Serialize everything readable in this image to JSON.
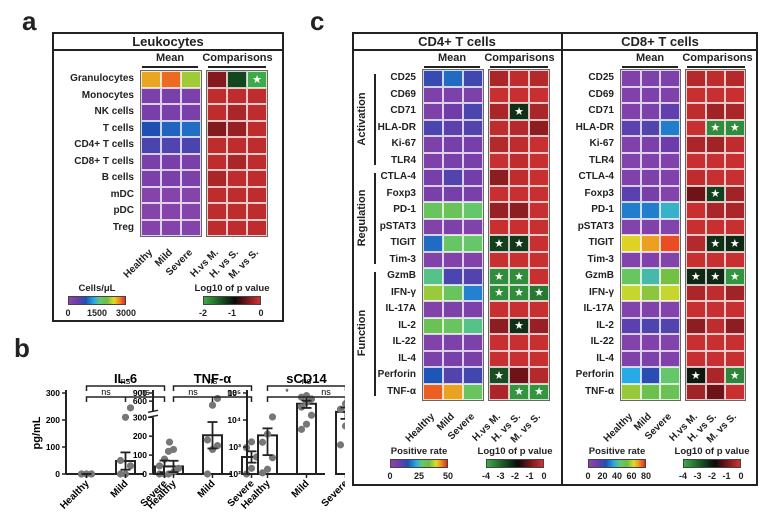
{
  "panels": {
    "a_label": "a",
    "b_label": "b",
    "c_label": "c"
  },
  "chart_data": [
    {
      "id": "panel-a",
      "type": "heatmap",
      "title": "Leukocytes",
      "mean_header": "Mean",
      "comparisons_header": "Comparisons",
      "rows": [
        "Granulocytes",
        "Monocytes",
        "NK cells",
        "T cells",
        "CD4+ T cells",
        "CD8+ T cells",
        "B cells",
        "mDC",
        "pDC",
        "Treg"
      ],
      "mean_columns": [
        "Healthy",
        "Mild",
        "Severe"
      ],
      "comparison_columns": [
        "H.vs M.",
        "H. vs S.",
        "M. vs S."
      ],
      "mean_values_cells_per_uL": [
        [
          2600,
          2800,
          2200
        ],
        [
          250,
          280,
          260
        ],
        [
          300,
          280,
          290
        ],
        [
          900,
          1000,
          1050
        ],
        [
          650,
          620,
          640
        ],
        [
          280,
          300,
          290
        ],
        [
          250,
          270,
          260
        ],
        [
          100,
          110,
          110
        ],
        [
          110,
          110,
          110
        ],
        [
          120,
          115,
          120
        ]
      ],
      "comparison_log10_p": [
        [
          -0.4,
          -1.3,
          -2.0
        ],
        [
          -0.1,
          -0.1,
          -0.1
        ],
        [
          -0.1,
          -0.2,
          -0.1
        ],
        [
          -0.4,
          -0.3,
          -0.1
        ],
        [
          -0.1,
          -0.1,
          -0.1
        ],
        [
          -0.1,
          -0.2,
          -0.1
        ],
        [
          -0.2,
          -0.1,
          -0.1
        ],
        [
          -0.1,
          -0.1,
          -0.1
        ],
        [
          -0.1,
          -0.1,
          -0.1
        ],
        [
          -0.1,
          -0.1,
          -0.1
        ]
      ],
      "significant": [
        [
          false,
          false,
          true
        ],
        [
          false,
          false,
          false
        ],
        [
          false,
          false,
          false
        ],
        [
          false,
          false,
          false
        ],
        [
          false,
          false,
          false
        ],
        [
          false,
          false,
          false
        ],
        [
          false,
          false,
          false
        ],
        [
          false,
          false,
          false
        ],
        [
          false,
          false,
          false
        ],
        [
          false,
          false,
          false
        ]
      ],
      "mean_colorbar": {
        "title": "Cells/μL",
        "ticks": [
          "0",
          "1500",
          "3000"
        ],
        "range": [
          0,
          3000
        ]
      },
      "p_colorbar": {
        "title": "Log10 of p value",
        "ticks": [
          "-2",
          "-1",
          "0"
        ],
        "range": [
          -2,
          0
        ]
      }
    },
    {
      "id": "panel-b",
      "type": "bar",
      "ylabel": "pg/mL",
      "categories": [
        "Healthy",
        "Mild",
        "Severe"
      ],
      "subplots": [
        {
          "title": "IL-6",
          "scale": "linear",
          "yticks": [
            "0",
            "100",
            "200",
            "300"
          ],
          "ylim": [
            0,
            300
          ],
          "values": [
            0,
            48,
            28
          ],
          "errors": [
            0,
            32,
            22
          ],
          "points": [
            [
              0,
              0,
              0,
              0,
              0,
              0
            ],
            [
              0,
              0,
              30,
              50,
              210,
              245
            ],
            [
              0,
              0,
              10,
              30,
              55,
              118
            ]
          ],
          "sig": {
            "top": "ns",
            "left": "ns",
            "right": "ns"
          }
        },
        {
          "title": "TNF-α",
          "scale": "broken",
          "yticks": [
            "0",
            "100",
            "200",
            "300",
            "600",
            "900"
          ],
          "ylim": [
            0,
            900
          ],
          "values": [
            40,
            205,
            90
          ],
          "errors": [
            30,
            70,
            30
          ],
          "points": [
            [
              0,
              10,
              30,
              120,
              130
            ],
            [
              0,
              130,
              150,
              180,
              450,
              700
            ],
            [
              0,
              30,
              90,
              140,
              170
            ]
          ],
          "sig": {
            "top": "ns",
            "left": "ns",
            "right": "ns"
          }
        },
        {
          "title": "sCD14",
          "scale": "log",
          "yticks": [
            "10²",
            "10³",
            "10⁴",
            "10⁵"
          ],
          "ylim": [
            100,
            100000
          ],
          "values": [
            2700,
            40000,
            20000
          ],
          "errors": [
            2200,
            12000,
            9000
          ],
          "points": [
            [
              110,
              150,
              400,
              1500,
              3000,
              13000
            ],
            [
              4500,
              7000,
              15000,
              30000,
              45000,
              60000,
              70000,
              80000
            ],
            [
              1200,
              6000,
              15000,
              25000,
              40000,
              45000
            ]
          ],
          "sig": {
            "top": "ns",
            "left": "*",
            "right": "ns"
          }
        }
      ]
    },
    {
      "id": "panel-c-cd4",
      "type": "heatmap",
      "title": "CD4+ T cells",
      "mean_header": "Mean",
      "comparisons_header": "Comparisons",
      "groups": [
        {
          "label": "Activation",
          "rows": 6
        },
        {
          "label": "Regulation",
          "rows": 6
        },
        {
          "label": "Function",
          "rows": 8
        }
      ],
      "rows": [
        "CD25",
        "CD69",
        "CD71",
        "HLA-DR",
        "Ki-67",
        "TLR4",
        "CTLA-4",
        "Foxp3",
        "PD-1",
        "pSTAT3",
        "TIGIT",
        "Tim-3",
        "GzmB",
        "IFN-γ",
        "IL-17A",
        "IL-2",
        "IL-22",
        "IL-4",
        "Perforin",
        "TNF-α"
      ],
      "mean_columns": [
        "Healthy",
        "Mild",
        "Severe"
      ],
      "comparison_columns": [
        "H.vs M.",
        "H. vs S.",
        "M. vs S."
      ],
      "mean_values_positive_rate": [
        [
          14,
          19,
          13
        ],
        [
          4,
          4,
          4
        ],
        [
          4,
          8,
          12
        ],
        [
          12,
          10,
          11
        ],
        [
          4,
          6,
          6
        ],
        [
          4,
          5,
          5
        ],
        [
          6,
          11,
          7
        ],
        [
          5,
          6,
          5
        ],
        [
          33,
          34,
          31
        ],
        [
          3,
          4,
          3
        ],
        [
          19,
          32,
          31
        ],
        [
          3,
          3,
          3
        ],
        [
          29,
          12,
          11
        ],
        [
          40,
          33,
          21
        ],
        [
          3,
          4,
          4
        ],
        [
          35,
          33,
          29
        ],
        [
          3,
          4,
          4
        ],
        [
          4,
          5,
          5
        ],
        [
          17,
          11,
          13
        ],
        [
          52,
          48,
          33
        ]
      ],
      "comparison_log10_p": [
        [
          -0.4,
          -0.2,
          -0.3
        ],
        [
          -0.1,
          -0.1,
          -0.1
        ],
        [
          -0.4,
          -2.3,
          -0.4
        ],
        [
          -0.2,
          -0.3,
          -0.7
        ],
        [
          -0.3,
          -0.2,
          -0.1
        ],
        [
          -0.1,
          -0.2,
          -0.1
        ],
        [
          -0.7,
          -0.2,
          -0.1
        ],
        [
          -0.1,
          -0.1,
          -0.1
        ],
        [
          -0.6,
          -0.7,
          -0.1
        ],
        [
          -0.1,
          -0.1,
          -0.1
        ],
        [
          -2.5,
          -2.4,
          -0.1
        ],
        [
          -0.1,
          -0.1,
          -0.1
        ],
        [
          -3.6,
          -3.6,
          -0.1
        ],
        [
          -3.6,
          -3.6,
          -3.3
        ],
        [
          -0.1,
          -0.1,
          -0.1
        ],
        [
          -0.7,
          -2.3,
          -0.6
        ],
        [
          -0.1,
          -0.1,
          -0.1
        ],
        [
          -0.1,
          -0.1,
          -0.1
        ],
        [
          -2.7,
          -1.0,
          -0.3
        ],
        [
          -0.4,
          -3.7,
          -3.7
        ]
      ],
      "significant": [
        [
          false,
          false,
          false
        ],
        [
          false,
          false,
          false
        ],
        [
          false,
          true,
          false
        ],
        [
          false,
          false,
          false
        ],
        [
          false,
          false,
          false
        ],
        [
          false,
          false,
          false
        ],
        [
          false,
          false,
          false
        ],
        [
          false,
          false,
          false
        ],
        [
          false,
          false,
          false
        ],
        [
          false,
          false,
          false
        ],
        [
          true,
          true,
          false
        ],
        [
          false,
          false,
          false
        ],
        [
          true,
          true,
          false
        ],
        [
          true,
          true,
          true
        ],
        [
          false,
          false,
          false
        ],
        [
          false,
          true,
          false
        ],
        [
          false,
          false,
          false
        ],
        [
          false,
          false,
          false
        ],
        [
          true,
          false,
          false
        ],
        [
          false,
          true,
          true
        ]
      ],
      "mean_colorbar": {
        "title": "Positive rate",
        "ticks": [
          "0",
          "25",
          "50"
        ],
        "range": [
          0,
          55
        ]
      },
      "p_colorbar": {
        "title": "Log10 of p value",
        "ticks": [
          "-4",
          "-3",
          "-2",
          "-1",
          "0"
        ],
        "range": [
          -4,
          0
        ]
      }
    },
    {
      "id": "panel-c-cd8",
      "type": "heatmap",
      "title": "CD8+ T cells",
      "mean_header": "Mean",
      "comparisons_header": "Comparisons",
      "rows": [
        "CD25",
        "CD69",
        "CD71",
        "HLA-DR",
        "Ki-67",
        "TLR4",
        "CTLA-4",
        "Foxp3",
        "PD-1",
        "pSTAT3",
        "TIGIT",
        "Tim-3",
        "GzmB",
        "IFN-γ",
        "IL-17A",
        "IL-2",
        "IL-22",
        "IL-4",
        "Perforin",
        "TNF-α"
      ],
      "mean_columns": [
        "Healthy",
        "Mild",
        "Severe"
      ],
      "comparison_columns": [
        "H.vs M.",
        "H. vs S.",
        "M. vs S."
      ],
      "mean_values_positive_rate": [
        [
          5,
          6,
          6
        ],
        [
          5,
          6,
          5
        ],
        [
          5,
          6,
          14
        ],
        [
          15,
          16,
          30
        ],
        [
          5,
          7,
          12
        ],
        [
          4,
          5,
          5
        ],
        [
          5,
          6,
          5
        ],
        [
          15,
          9,
          4
        ],
        [
          30,
          30,
          38
        ],
        [
          4,
          5,
          4
        ],
        [
          65,
          70,
          77
        ],
        [
          4,
          5,
          4
        ],
        [
          47,
          40,
          55
        ],
        [
          62,
          57,
          62
        ],
        [
          4,
          5,
          4
        ],
        [
          15,
          17,
          16
        ],
        [
          4,
          5,
          4
        ],
        [
          5,
          6,
          5
        ],
        [
          36,
          22,
          45
        ],
        [
          58,
          52,
          50
        ]
      ],
      "comparison_log10_p": [
        [
          -0.3,
          -0.2,
          -0.3
        ],
        [
          -0.1,
          -0.1,
          -0.1
        ],
        [
          -0.2,
          -0.5,
          -0.4
        ],
        [
          -0.1,
          -3.6,
          -3.6
        ],
        [
          -0.4,
          -0.5,
          -0.2
        ],
        [
          -0.1,
          -0.1,
          -0.1
        ],
        [
          -0.2,
          -0.1,
          -0.1
        ],
        [
          -1.0,
          -2.5,
          -0.5
        ],
        [
          -0.1,
          -0.4,
          -0.4
        ],
        [
          -0.1,
          -0.1,
          -0.1
        ],
        [
          -0.3,
          -2.3,
          -2.2
        ],
        [
          -0.1,
          -0.1,
          -0.1
        ],
        [
          -2.2,
          -2.2,
          -3.7
        ],
        [
          -0.4,
          -0.2,
          -0.5
        ],
        [
          -0.1,
          -0.1,
          -0.1
        ],
        [
          -0.7,
          -0.2,
          -0.7
        ],
        [
          -0.1,
          -0.1,
          -0.1
        ],
        [
          -0.1,
          -0.1,
          -0.1
        ],
        [
          -2.0,
          -0.4,
          -3.5
        ],
        [
          -0.5,
          -1.0,
          -0.1
        ]
      ],
      "significant": [
        [
          false,
          false,
          false
        ],
        [
          false,
          false,
          false
        ],
        [
          false,
          false,
          false
        ],
        [
          false,
          true,
          true
        ],
        [
          false,
          false,
          false
        ],
        [
          false,
          false,
          false
        ],
        [
          false,
          false,
          false
        ],
        [
          false,
          true,
          false
        ],
        [
          false,
          false,
          false
        ],
        [
          false,
          false,
          false
        ],
        [
          false,
          true,
          true
        ],
        [
          false,
          false,
          false
        ],
        [
          true,
          true,
          true
        ],
        [
          false,
          false,
          false
        ],
        [
          false,
          false,
          false
        ],
        [
          false,
          false,
          false
        ],
        [
          false,
          false,
          false
        ],
        [
          false,
          false,
          false
        ],
        [
          true,
          false,
          true
        ],
        [
          false,
          false,
          false
        ]
      ],
      "mean_colorbar": {
        "title": "Positive rate",
        "ticks": [
          "0",
          "20",
          "40",
          "60",
          "80"
        ],
        "range": [
          0,
          80
        ]
      },
      "p_colorbar": {
        "title": "Log10 of p value",
        "ticks": [
          "-4",
          "-3",
          "-2",
          "-1",
          "0"
        ],
        "range": [
          -4,
          0
        ]
      }
    }
  ]
}
